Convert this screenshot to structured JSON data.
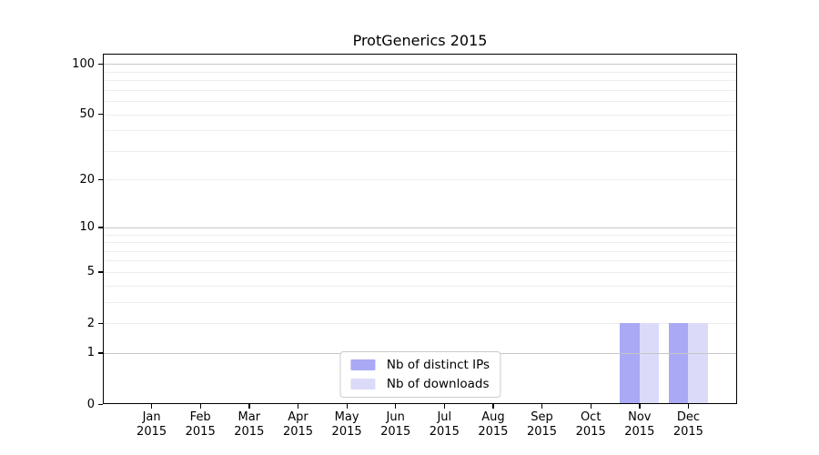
{
  "chart_data": {
    "type": "bar",
    "title": "ProtGenerics 2015",
    "xlabel": "",
    "ylabel": "",
    "x_categories": [
      "Jan",
      "Feb",
      "Mar",
      "Apr",
      "May",
      "Jun",
      "Jul",
      "Aug",
      "Sep",
      "Oct",
      "Nov",
      "Dec"
    ],
    "x_year_label": "2015",
    "series": [
      {
        "name": "Nb of distinct IPs",
        "color": "#a9a9f6",
        "values": [
          0,
          0,
          0,
          0,
          0,
          0,
          0,
          0,
          0,
          0,
          2,
          2
        ]
      },
      {
        "name": "Nb of downloads",
        "color": "#dbdbf9",
        "values": [
          0,
          0,
          0,
          0,
          0,
          0,
          0,
          0,
          0,
          0,
          2,
          2
        ]
      }
    ],
    "y_scale": "log1p",
    "ylim": [
      0,
      115
    ],
    "y_ticks": [
      0,
      1,
      2,
      5,
      10,
      20,
      50,
      100
    ],
    "y_major_grid": [
      1,
      10,
      100
    ],
    "y_minor_grid": [
      2,
      3,
      4,
      5,
      6,
      7,
      8,
      9,
      20,
      30,
      40,
      50,
      60,
      70,
      80,
      90
    ],
    "grid": "on",
    "legend_position": "lower center",
    "colors": {
      "axis": "#000000",
      "text": "#000000",
      "major_grid": "#c6c6c6",
      "minor_grid": "#ededed",
      "legend_border": "#cccccc",
      "background": "#ffffff"
    }
  }
}
